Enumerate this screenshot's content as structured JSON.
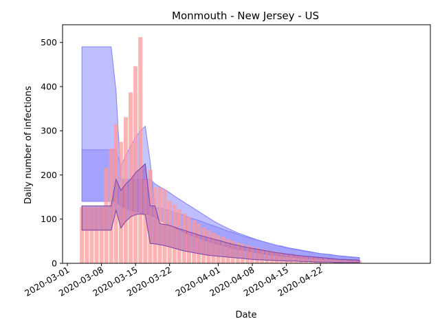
{
  "chart_data": {
    "type": "bar",
    "title": "Monmouth - New Jersey - US",
    "xlabel": "Date",
    "ylabel": "Daily number of infections",
    "x_start": "2020-03-04",
    "values": [
      127,
      127,
      127,
      127,
      127,
      216,
      260,
      315,
      275,
      331,
      387,
      446,
      512,
      190,
      212,
      172,
      172,
      167,
      142,
      133,
      122,
      113,
      105,
      97,
      90,
      81,
      75,
      69,
      64,
      60,
      55,
      51,
      47,
      44,
      41,
      38,
      35,
      32,
      30,
      28,
      26,
      24,
      22,
      20,
      18,
      17,
      16,
      14,
      13,
      12,
      11,
      10,
      9,
      8,
      8,
      7,
      7,
      6
    ],
    "bands": [
      {
        "name": "",
        "color": "#8080ff",
        "upper": [
          490,
          490,
          490,
          490,
          490,
          490,
          490,
          390,
          190,
          190,
          190,
          190,
          190,
          190,
          190,
          180,
          173,
          167,
          160,
          152,
          145,
          138,
          131,
          124,
          117,
          110,
          103,
          96,
          90,
          84,
          79,
          74,
          69,
          65,
          61,
          57,
          53,
          50,
          47,
          44,
          41,
          38,
          35,
          33,
          31,
          29,
          27,
          25,
          24,
          22,
          21,
          20,
          18,
          17,
          16,
          15,
          14,
          13
        ],
        "lower": [
          140,
          140,
          140,
          140,
          140,
          140,
          140,
          140,
          130,
          125,
          120,
          118,
          115,
          112,
          110,
          104,
          98,
          92,
          86,
          80,
          75,
          70,
          65,
          61,
          57,
          53,
          49,
          46,
          43,
          40,
          37,
          34,
          32,
          30,
          28,
          26,
          24,
          22,
          20,
          19,
          18,
          16,
          15,
          14,
          13,
          12,
          11,
          10,
          10,
          9,
          8,
          8,
          7,
          7,
          6,
          6,
          5,
          5
        ]
      },
      {
        "name": "",
        "color": "#8080ff",
        "upper": [
          257,
          257,
          257,
          257,
          257,
          257,
          257,
          257,
          220,
          245,
          265,
          285,
          300,
          310,
          230,
          125,
          125,
          122,
          119,
          115,
          112,
          108,
          104,
          100,
          97,
          93,
          89,
          85,
          81,
          77,
          73,
          70,
          66,
          62,
          59,
          56,
          53,
          50,
          47,
          44,
          41,
          39,
          36,
          34,
          32,
          30,
          28,
          26,
          24,
          22,
          21,
          19,
          18,
          17,
          15,
          14,
          13,
          12
        ]
      },
      {
        "name": "",
        "color": "#9966cc",
        "upper": [
          130,
          130,
          130,
          130,
          130,
          130,
          130,
          190,
          165,
          180,
          190,
          205,
          215,
          225,
          130,
          130,
          90,
          88,
          86,
          82,
          78,
          75,
          71,
          68,
          64,
          61,
          58,
          55,
          52,
          49,
          46,
          43,
          41,
          38,
          36,
          34,
          32,
          30,
          28,
          26,
          24,
          23,
          21,
          20,
          18,
          17,
          16,
          15,
          14,
          13,
          12,
          11,
          10,
          9,
          9,
          8,
          8,
          7
        ],
        "lower": [
          75,
          75,
          75,
          75,
          75,
          75,
          75,
          120,
          80,
          95,
          105,
          110,
          112,
          110,
          45,
          44,
          42,
          40,
          37,
          34,
          31,
          28,
          26,
          24,
          22,
          20,
          18,
          17,
          16,
          15,
          14,
          13,
          12,
          11,
          10,
          9,
          8,
          8,
          7,
          7,
          6,
          6,
          5,
          5,
          5,
          4,
          4,
          4,
          3,
          3,
          3,
          3,
          2,
          2,
          2,
          2,
          2,
          2
        ]
      }
    ],
    "ylim": [
      0,
      540
    ],
    "yticks": [
      "0",
      "100",
      "200",
      "300",
      "400",
      "500"
    ],
    "xticks": [
      "2020-03-01",
      "2020-03-08",
      "2020-03-15",
      "2020-03-22",
      "2020-04-01",
      "2020-04-08",
      "2020-04-15",
      "2020-04-22"
    ],
    "bar_color": "#ff9999",
    "grid": false
  }
}
